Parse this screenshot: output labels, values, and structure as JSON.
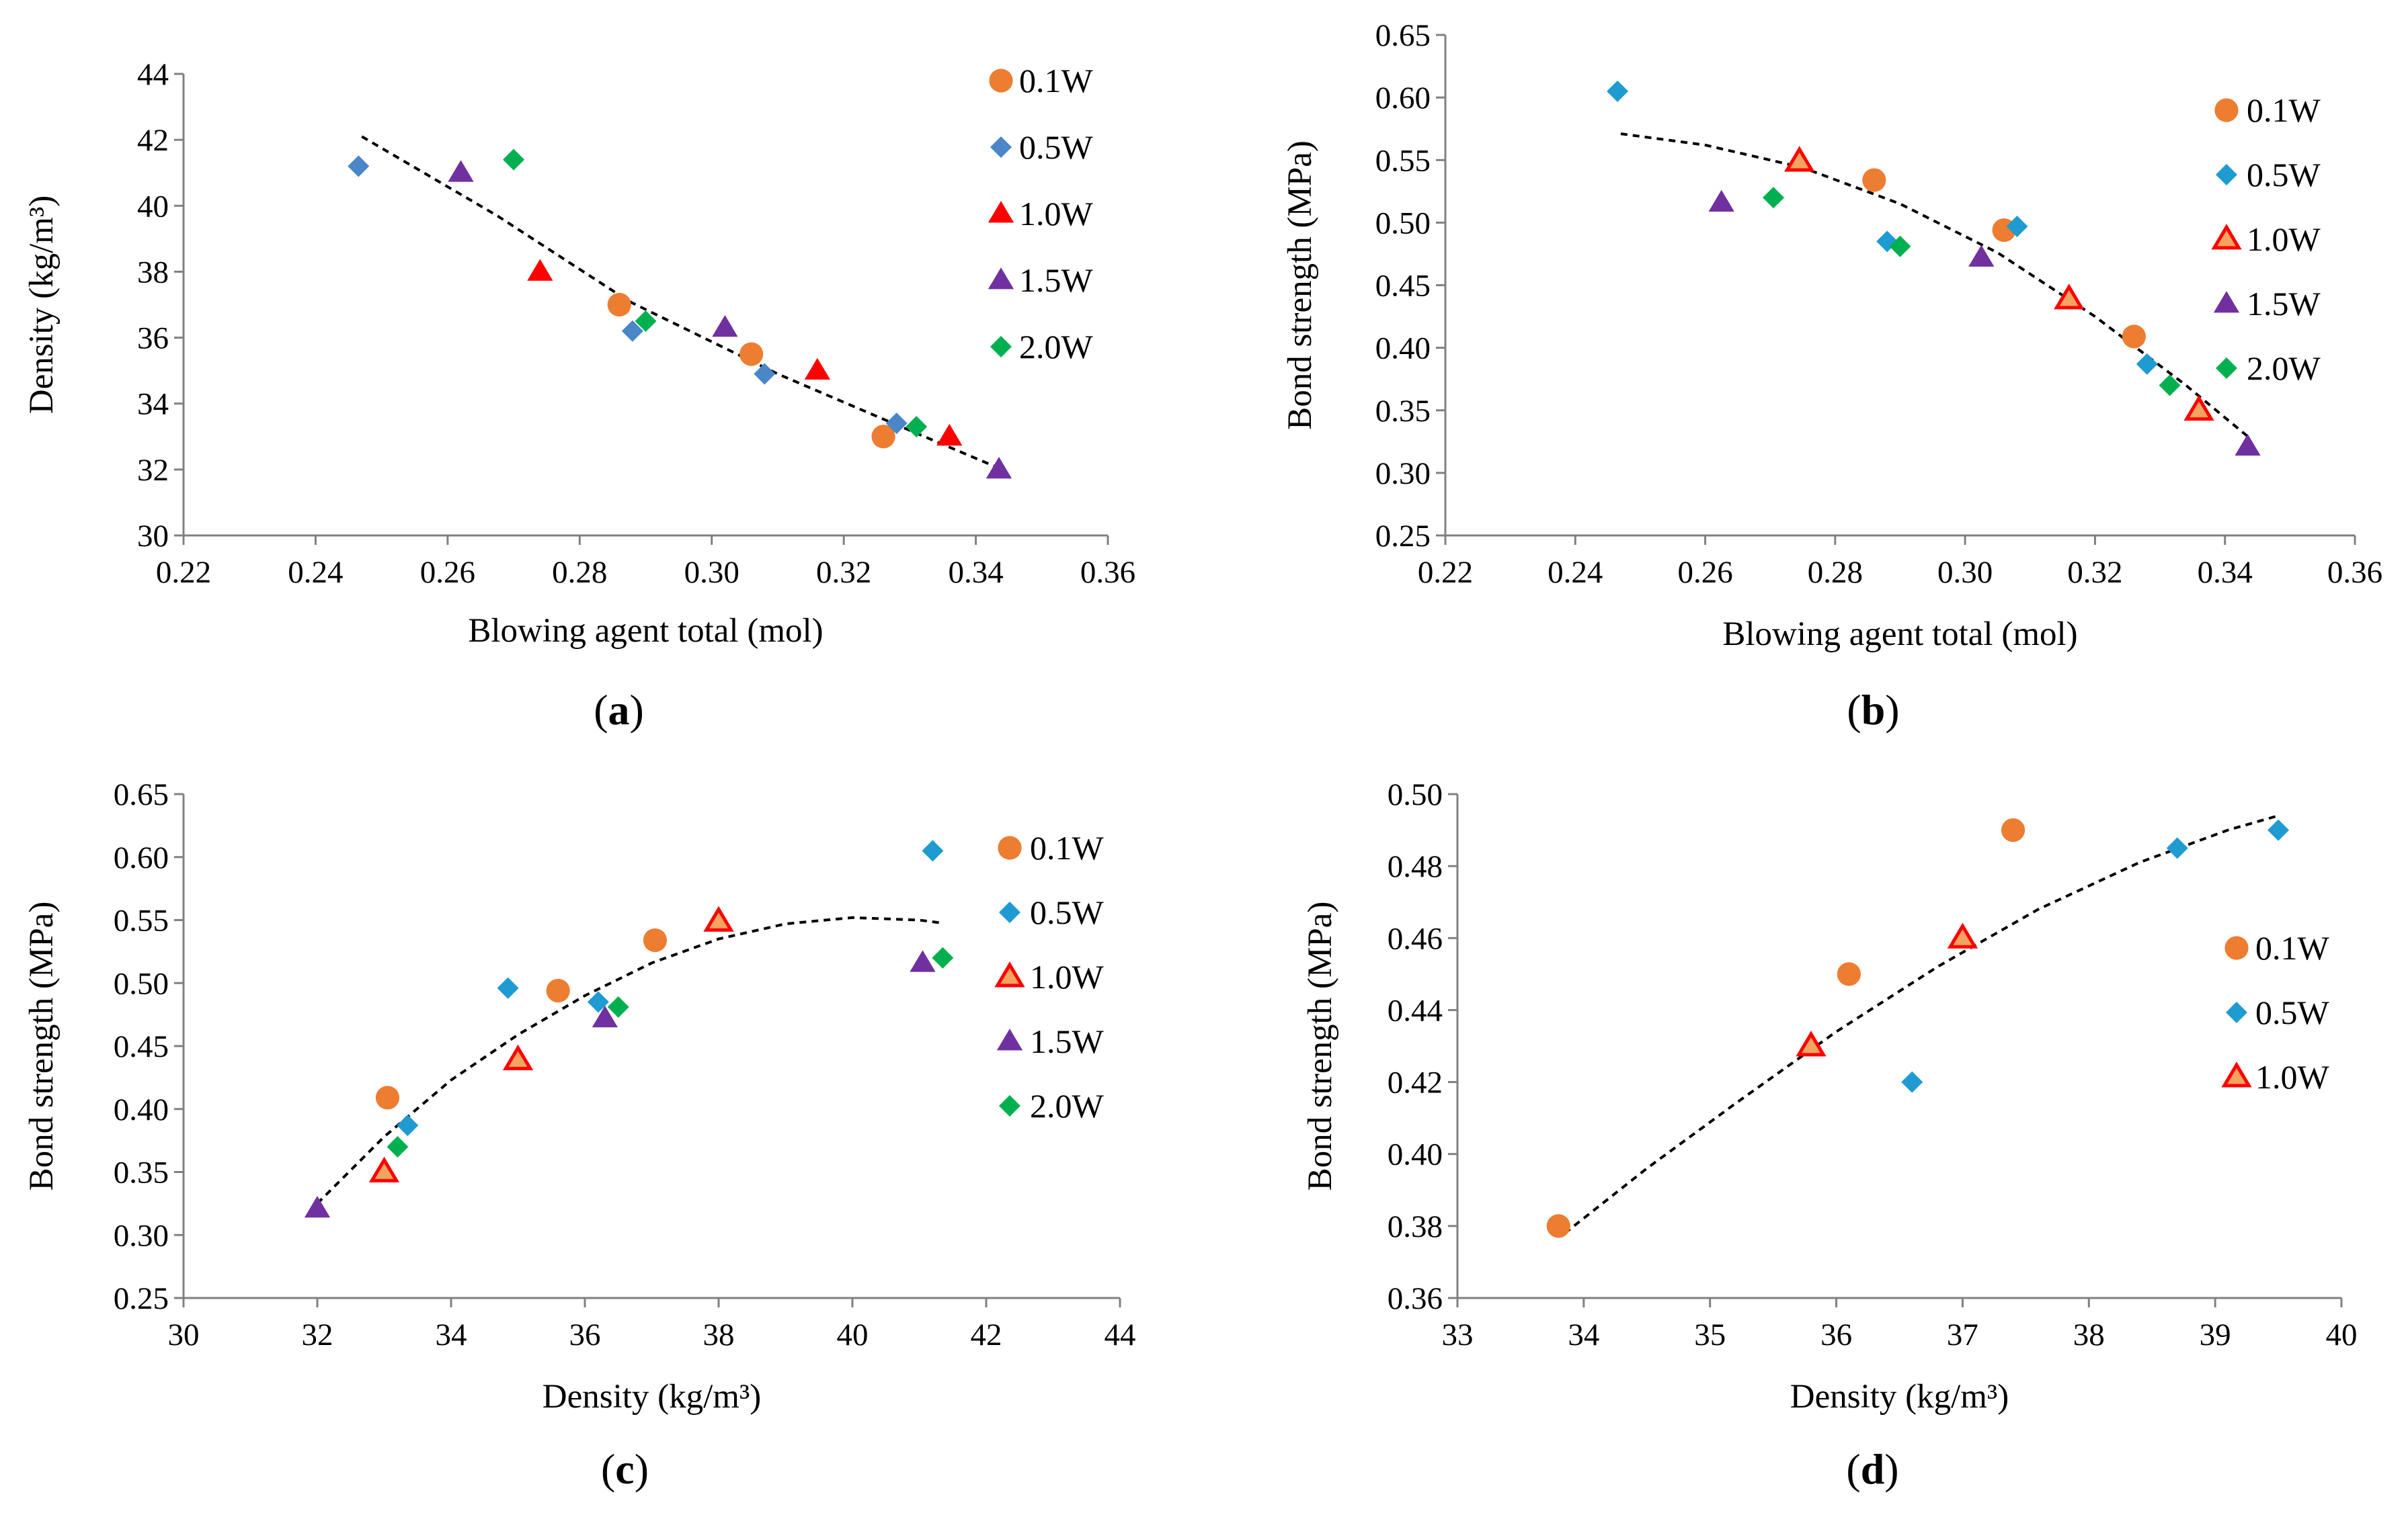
{
  "chart_data": [
    {
      "type": "scatter",
      "panel_label": "a",
      "title": "",
      "xlabel": "Blowing agent total (mol)",
      "ylabel": "Density (kg/m³)",
      "xlim": [
        0.22,
        0.36
      ],
      "ylim": [
        30,
        44
      ],
      "xticks": [
        0.22,
        0.24,
        0.26,
        0.28,
        0.3,
        0.32,
        0.34,
        0.36
      ],
      "yticks": [
        30,
        32,
        34,
        36,
        38,
        40,
        42,
        44
      ],
      "x_decimals": 2,
      "y_decimals": 0,
      "grid": false,
      "legend_position": "top-right",
      "series": [
        {
          "name": "0.1W",
          "marker": "circle",
          "color": "#ED7D31",
          "x": [
            0.286,
            0.306,
            0.326
          ],
          "y": [
            37.0,
            35.5,
            33.0
          ]
        },
        {
          "name": "0.5W",
          "marker": "diamond",
          "color": "#4A86C8",
          "x": [
            0.2465,
            0.288,
            0.308,
            0.328
          ],
          "y": [
            41.2,
            36.2,
            34.9,
            33.4
          ]
        },
        {
          "name": "1.0W",
          "marker": "triangle",
          "color": "#FF0000",
          "x": [
            0.274,
            0.316,
            0.336
          ],
          "y": [
            38.0,
            35.0,
            33.0
          ]
        },
        {
          "name": "1.5W",
          "marker": "triangle",
          "color": "#7030A0",
          "x": [
            0.262,
            0.302,
            0.3435
          ],
          "y": [
            41.0,
            36.3,
            32.0
          ]
        },
        {
          "name": "2.0W",
          "marker": "diamond",
          "color": "#00B050",
          "x": [
            0.27,
            0.29,
            0.331
          ],
          "y": [
            41.4,
            36.5,
            33.3
          ]
        }
      ],
      "trendline": {
        "style": "dashed",
        "x": [
          0.247,
          0.2675,
          0.2875,
          0.31,
          0.3275,
          0.344
        ],
        "y": [
          42.1,
          39.7,
          37.1,
          34.9,
          33.4,
          32.0
        ]
      }
    },
    {
      "type": "scatter",
      "panel_label": "b",
      "title": "",
      "xlabel": "Blowing agent total (mol)",
      "ylabel": "Bond strength (MPa)",
      "xlim": [
        0.22,
        0.36
      ],
      "ylim": [
        0.25,
        0.65
      ],
      "xticks": [
        0.22,
        0.24,
        0.26,
        0.28,
        0.3,
        0.32,
        0.34,
        0.36
      ],
      "yticks": [
        0.25,
        0.3,
        0.35,
        0.4,
        0.45,
        0.5,
        0.55,
        0.6,
        0.65
      ],
      "x_decimals": 2,
      "y_decimals": 2,
      "grid": false,
      "legend_position": "top-right",
      "series": [
        {
          "name": "0.1W",
          "marker": "circle",
          "color": "#ED7D31",
          "x": [
            0.286,
            0.306,
            0.326
          ],
          "y": [
            0.534,
            0.494,
            0.409
          ]
        },
        {
          "name": "0.5W",
          "marker": "diamond",
          "color": "#1F9BD1",
          "x": [
            0.2465,
            0.288,
            0.308,
            0.328
          ],
          "y": [
            0.605,
            0.485,
            0.497,
            0.387
          ]
        },
        {
          "name": "1.0W",
          "marker": "triangle",
          "color": "#FF0000",
          "fill": "#F4A460",
          "x": [
            0.2745,
            0.316,
            0.336
          ],
          "y": [
            0.549,
            0.439,
            0.35
          ]
        },
        {
          "name": "1.5W",
          "marker": "triangle",
          "color": "#7030A0",
          "x": [
            0.2625,
            0.3025,
            0.3435
          ],
          "y": [
            0.516,
            0.472,
            0.321
          ]
        },
        {
          "name": "2.0W",
          "marker": "diamond",
          "color": "#00B050",
          "x": [
            0.2705,
            0.29,
            0.3315
          ],
          "y": [
            0.52,
            0.481,
            0.37
          ]
        }
      ],
      "trendline": {
        "style": "dashed",
        "x": [
          0.247,
          0.26,
          0.275,
          0.29,
          0.305,
          0.32,
          0.334,
          0.344
        ],
        "y": [
          0.571,
          0.562,
          0.544,
          0.515,
          0.476,
          0.425,
          0.37,
          0.327
        ]
      }
    },
    {
      "type": "scatter",
      "panel_label": "c",
      "title": "",
      "xlabel": "Density (kg/m³)",
      "ylabel": "Bond strength (MPa)",
      "xlim": [
        30,
        44
      ],
      "ylim": [
        0.25,
        0.65
      ],
      "xticks": [
        30,
        32,
        34,
        36,
        38,
        40,
        42,
        44
      ],
      "yticks": [
        0.25,
        0.3,
        0.35,
        0.4,
        0.45,
        0.5,
        0.55,
        0.6,
        0.65
      ],
      "x_decimals": 0,
      "y_decimals": 2,
      "grid": false,
      "legend_position": "top-right",
      "series": [
        {
          "name": "0.1W",
          "marker": "circle",
          "color": "#ED7D31",
          "x": [
            33.05,
            35.6,
            37.05
          ],
          "y": [
            0.409,
            0.494,
            0.534
          ]
        },
        {
          "name": "0.5W",
          "marker": "diamond",
          "color": "#1F9BD1",
          "x": [
            33.35,
            34.85,
            36.2,
            41.2
          ],
          "y": [
            0.387,
            0.496,
            0.485,
            0.605
          ]
        },
        {
          "name": "1.0W",
          "marker": "triangle",
          "color": "#FF0000",
          "fill": "#F4A460",
          "x": [
            33.0,
            35.0,
            38.0
          ],
          "y": [
            0.35,
            0.439,
            0.549
          ]
        },
        {
          "name": "1.5W",
          "marker": "triangle",
          "color": "#7030A0",
          "x": [
            32.0,
            36.3,
            41.05
          ],
          "y": [
            0.321,
            0.472,
            0.516
          ]
        },
        {
          "name": "2.0W",
          "marker": "diamond",
          "color": "#00B050",
          "x": [
            33.2,
            36.5,
            41.35
          ],
          "y": [
            0.37,
            0.481,
            0.52
          ]
        }
      ],
      "trendline": {
        "style": "dashed",
        "x": [
          32.0,
          33.0,
          34.0,
          35.0,
          36.0,
          37.0,
          38.0,
          39.0,
          40.0,
          41.0,
          41.3
        ],
        "y": [
          0.325,
          0.378,
          0.423,
          0.459,
          0.49,
          0.516,
          0.535,
          0.547,
          0.552,
          0.55,
          0.548
        ]
      }
    },
    {
      "type": "scatter",
      "panel_label": "d",
      "title": "",
      "xlabel": "Density (kg/m³)",
      "ylabel": "Bond strength (MPa)",
      "xlim": [
        33,
        40
      ],
      "ylim": [
        0.36,
        0.5
      ],
      "xticks": [
        33,
        34,
        35,
        36,
        37,
        38,
        39,
        40
      ],
      "yticks": [
        0.36,
        0.38,
        0.4,
        0.42,
        0.44,
        0.46,
        0.48,
        0.5
      ],
      "x_decimals": 0,
      "y_decimals": 2,
      "grid": false,
      "legend_position": "right",
      "series": [
        {
          "name": "0.1W",
          "marker": "circle",
          "color": "#ED7D31",
          "x": [
            33.8,
            36.1,
            37.4
          ],
          "y": [
            0.38,
            0.45,
            0.49
          ]
        },
        {
          "name": "0.5W",
          "marker": "diamond",
          "color": "#1F9BD1",
          "x": [
            36.6,
            38.7,
            39.5
          ],
          "y": [
            0.42,
            0.485,
            0.49
          ]
        },
        {
          "name": "1.0W",
          "marker": "triangle",
          "color": "#FF0000",
          "fill": "#F4A460",
          "x": [
            35.8,
            37.0
          ],
          "y": [
            0.43,
            0.46
          ]
        }
      ],
      "trendline": {
        "style": "dashed",
        "x": [
          33.85,
          34.5,
          35.2,
          36.0,
          36.8,
          37.6,
          38.4,
          39.1,
          39.5
        ],
        "y": [
          0.378,
          0.396,
          0.414,
          0.434,
          0.452,
          0.468,
          0.481,
          0.49,
          0.494
        ]
      }
    }
  ]
}
